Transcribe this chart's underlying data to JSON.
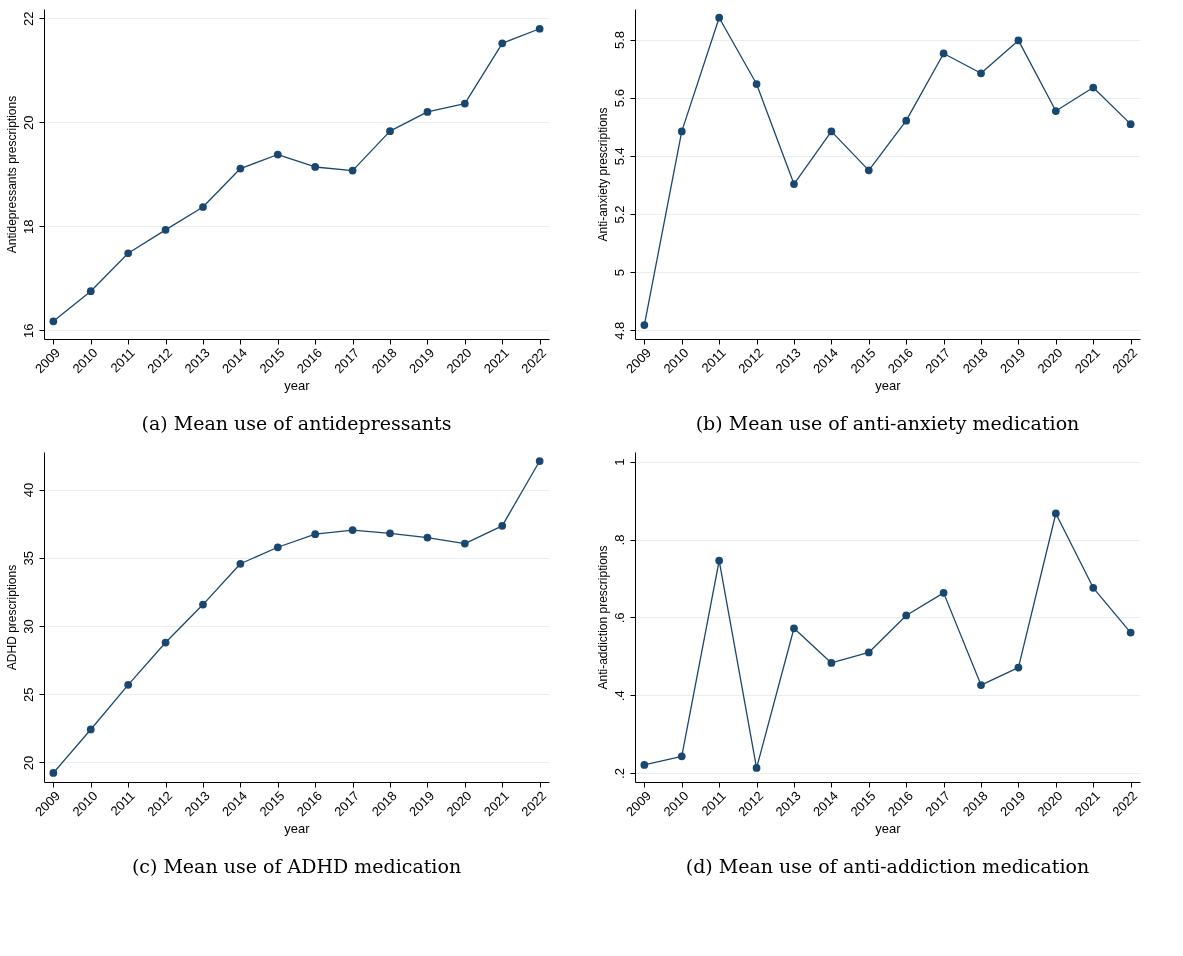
{
  "chart_data": [
    {
      "type": "line",
      "title": "(a) Mean use of antidepressants",
      "xlabel": "year",
      "ylabel": "Antidepressants prescriptions",
      "categories": [
        "2009",
        "2010",
        "2011",
        "2012",
        "2013",
        "2014",
        "2015",
        "2016",
        "2017",
        "2018",
        "2019",
        "2020",
        "2021",
        "2022"
      ],
      "series": [
        {
          "color": "#1a476f",
          "values": [
            16.17,
            16.75,
            17.48,
            17.93,
            18.37,
            19.11,
            19.38,
            19.14,
            19.07,
            19.83,
            20.2,
            20.36,
            21.52,
            21.8
          ]
        }
      ],
      "ylim": [
        15.83,
        22.18
      ],
      "yticks": [
        16,
        18,
        20,
        22
      ],
      "grid": "y",
      "marker": "circle"
    },
    {
      "type": "line",
      "title": "(b) Mean use of anti-anxiety medication",
      "xlabel": "year",
      "ylabel": "Anti-anxiety prescriptions",
      "categories": [
        "2009",
        "2010",
        "2011",
        "2012",
        "2013",
        "2014",
        "2015",
        "2016",
        "2017",
        "2018",
        "2019",
        "2020",
        "2021",
        "2022"
      ],
      "series": [
        {
          "color": "#1a476f",
          "values": [
            4.818,
            5.484,
            5.875,
            5.647,
            5.303,
            5.484,
            5.35,
            5.521,
            5.752,
            5.684,
            5.797,
            5.554,
            5.635,
            5.509
          ]
        }
      ],
      "ylim": [
        4.77,
        5.905
      ],
      "yticks": [
        4.8,
        5,
        5.2,
        5.4,
        5.6,
        5.8
      ],
      "grid": "y",
      "marker": "circle"
    },
    {
      "type": "line",
      "title": "(c) Mean use of ADHD medication",
      "xlabel": "year",
      "ylabel": "ADHD prescriptions",
      "categories": [
        "2009",
        "2010",
        "2011",
        "2012",
        "2013",
        "2014",
        "2015",
        "2016",
        "2017",
        "2018",
        "2019",
        "2020",
        "2021",
        "2022"
      ],
      "series": [
        {
          "color": "#1a476f",
          "values": [
            19.23,
            22.42,
            25.69,
            28.79,
            31.57,
            34.56,
            35.77,
            36.73,
            37.03,
            36.79,
            36.48,
            36.04,
            37.34,
            42.09
          ]
        }
      ],
      "ylim": [
        18.57,
        42.75
      ],
      "yticks": [
        20,
        25,
        30,
        35,
        40
      ],
      "grid": "y",
      "marker": "circle"
    },
    {
      "type": "line",
      "title": "(d) Mean use of anti-addiction medication",
      "xlabel": "year",
      "ylabel": "Anti-addiction prescriptions",
      "categories": [
        "2009",
        "2010",
        "2011",
        "2012",
        "2013",
        "2014",
        "2015",
        "2016",
        "2017",
        "2018",
        "2019",
        "2020",
        "2021",
        "2022"
      ],
      "series": [
        {
          "color": "#1a476f",
          "values": [
            0.221,
            0.243,
            0.746,
            0.213,
            0.572,
            0.483,
            0.51,
            0.605,
            0.663,
            0.426,
            0.471,
            0.867,
            0.676,
            0.561
          ]
        }
      ],
      "ylim": [
        0.177,
        1.025
      ],
      "yticks": [
        {
          "value": 0.2,
          "label": ".2"
        },
        {
          "value": 0.4,
          "label": ".4"
        },
        {
          "value": 0.6,
          "label": ".6"
        },
        {
          "value": 0.8,
          "label": ".8"
        },
        {
          "value": 1,
          "label": "1"
        }
      ],
      "grid": "y",
      "marker": "circle"
    }
  ]
}
